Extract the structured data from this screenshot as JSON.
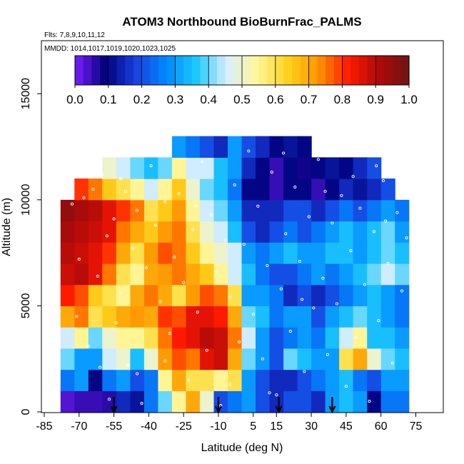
{
  "chart_data": {
    "type": "heatmap",
    "title": "ATOM3 Northbound BioBurnFrac_PALMS",
    "flights_note": "Flts: 7,8,9,10,11,12",
    "dates_note": "MMDD: 1014,1017,1019,1020,1023,1025",
    "xlabel": "Latitude (deg N)",
    "ylabel": "Altitude (m)",
    "xlim": [
      -85,
      85
    ],
    "ylim": [
      0,
      17500
    ],
    "x_ticks": [
      "-85",
      "-70",
      "-55",
      "-40",
      "-25",
      "-10",
      "5",
      "15",
      "30",
      "45",
      "60",
      "75"
    ],
    "y_ticks": [
      "0",
      "5000",
      "10000",
      "15000"
    ],
    "colorbar": {
      "ticks": [
        "0.0",
        "0.1",
        "0.2",
        "0.3",
        "0.4",
        "0.5",
        "0.6",
        "0.7",
        "0.8",
        "0.9",
        "1.0"
      ],
      "range": [
        0,
        1
      ],
      "colors": [
        "#7a1fff",
        "#00007a",
        "#1a3fdf",
        "#0088ff",
        "#1ec8ff",
        "#d9eeff",
        "#fff79a",
        "#ffd21e",
        "#ff9600",
        "#ff1a00",
        "#b00a0a",
        "#6e1414"
      ]
    },
    "latitude_bins": [
      -75,
      -69,
      -63,
      -57,
      -51,
      -45,
      -39,
      -33,
      -27,
      -21,
      -15,
      -9,
      -3,
      3,
      9,
      15,
      21,
      27,
      33,
      39,
      45,
      51,
      57,
      63,
      69,
      75
    ],
    "altitude_bins": [
      500,
      1500,
      2500,
      3500,
      4500,
      5500,
      6500,
      7500,
      8500,
      9500,
      10500,
      11500,
      12500
    ],
    "bioburn_fraction": [
      [
        0.03,
        0.05,
        0.05,
        0.06,
        0.15,
        0.12,
        0.25,
        0.4,
        0.55,
        0.7,
        0.5,
        0.2,
        0.25,
        0.3,
        0.2,
        0.15,
        0.2,
        0.2,
        0.15,
        0.3,
        0.35,
        0.3,
        0.1,
        0.25,
        0.25,
        null
      ],
      [
        0.25,
        0.3,
        0.1,
        0.25,
        0.3,
        0.2,
        0.25,
        0.55,
        0.7,
        0.6,
        0.6,
        0.55,
        0.6,
        0.3,
        0.2,
        0.15,
        0.15,
        0.2,
        0.25,
        0.3,
        0.35,
        0.25,
        0.2,
        0.3,
        0.3,
        null
      ],
      [
        0.4,
        0.3,
        0.3,
        0.45,
        0.5,
        0.35,
        0.5,
        0.72,
        0.78,
        0.75,
        0.85,
        0.88,
        0.7,
        0.4,
        0.3,
        0.2,
        0.4,
        0.35,
        0.3,
        0.3,
        0.6,
        0.7,
        0.5,
        0.4,
        0.35,
        null
      ],
      [
        0.45,
        0.55,
        0.4,
        0.5,
        0.55,
        0.55,
        0.6,
        0.75,
        0.82,
        0.85,
        0.9,
        0.88,
        0.75,
        0.45,
        0.3,
        0.2,
        0.25,
        0.3,
        0.25,
        0.35,
        0.45,
        0.55,
        0.35,
        0.35,
        0.3,
        null
      ],
      [
        0.7,
        0.75,
        0.6,
        0.65,
        0.7,
        0.72,
        0.7,
        0.8,
        0.78,
        0.85,
        0.85,
        0.82,
        0.7,
        0.4,
        0.35,
        0.25,
        0.3,
        0.3,
        0.2,
        0.3,
        0.35,
        0.4,
        0.35,
        0.3,
        0.25,
        null
      ],
      [
        0.82,
        0.78,
        0.65,
        0.6,
        0.55,
        0.7,
        0.75,
        0.7,
        0.6,
        0.72,
        0.78,
        0.75,
        0.6,
        0.3,
        0.3,
        0.25,
        0.15,
        0.2,
        0.15,
        0.2,
        0.25,
        0.3,
        0.35,
        0.3,
        0.25,
        null
      ],
      [
        0.88,
        0.9,
        0.85,
        0.75,
        0.6,
        0.55,
        0.7,
        0.72,
        0.75,
        0.7,
        0.65,
        0.55,
        0.45,
        0.35,
        0.25,
        0.2,
        0.2,
        0.25,
        0.3,
        0.25,
        0.3,
        0.35,
        0.4,
        0.45,
        0.4,
        null
      ],
      [
        0.9,
        0.88,
        0.85,
        0.8,
        0.7,
        0.6,
        0.72,
        0.78,
        0.75,
        0.65,
        0.55,
        0.5,
        0.45,
        0.3,
        0.25,
        0.3,
        0.35,
        0.3,
        0.3,
        0.35,
        0.35,
        0.3,
        0.35,
        0.4,
        0.35,
        null
      ],
      [
        0.92,
        0.9,
        0.88,
        0.85,
        0.75,
        0.7,
        0.65,
        0.72,
        0.75,
        0.6,
        0.5,
        0.45,
        0.35,
        0.2,
        0.15,
        0.2,
        0.25,
        0.2,
        0.25,
        0.3,
        0.35,
        0.3,
        0.35,
        0.4,
        0.3,
        null
      ],
      [
        0.95,
        0.92,
        0.9,
        0.85,
        0.8,
        0.75,
        0.6,
        0.65,
        0.72,
        0.55,
        0.45,
        0.4,
        0.3,
        0.15,
        0.15,
        0.15,
        0.2,
        0.2,
        0.15,
        0.2,
        0.25,
        0.2,
        0.25,
        0.3,
        0.25,
        null
      ],
      [
        null,
        0.8,
        0.75,
        0.65,
        0.6,
        0.55,
        0.45,
        0.55,
        0.65,
        0.5,
        0.4,
        0.35,
        0.25,
        0.1,
        0.1,
        0.05,
        0.1,
        0.1,
        0.05,
        0.1,
        0.15,
        0.12,
        0.15,
        0.2,
        null,
        null
      ],
      [
        null,
        null,
        null,
        0.5,
        0.45,
        0.4,
        0.35,
        0.4,
        0.55,
        0.45,
        0.45,
        0.35,
        0.3,
        0.15,
        0.1,
        0.05,
        0.1,
        0.08,
        0.1,
        0.12,
        0.1,
        0.15,
        0.2,
        null,
        null,
        null
      ],
      [
        null,
        null,
        null,
        null,
        null,
        null,
        null,
        null,
        0.3,
        0.25,
        0.2,
        0.15,
        0.3,
        0.2,
        0.15,
        0.1,
        0.12,
        0.1,
        null,
        null,
        null,
        null,
        null,
        null,
        null,
        null
      ]
    ],
    "sample_points": [
      [
        -73,
        9800
      ],
      [
        -70,
        7200
      ],
      [
        -68,
        10100
      ],
      [
        -66,
        3100
      ],
      [
        -64,
        10500
      ],
      [
        -62,
        6400
      ],
      [
        -60,
        11200
      ],
      [
        -58,
        8300
      ],
      [
        -57,
        600
      ],
      [
        -55,
        9100
      ],
      [
        -54,
        4200
      ],
      [
        -52,
        5600
      ],
      [
        -50,
        10400
      ],
      [
        -49,
        2200
      ],
      [
        -47,
        7700
      ],
      [
        -45,
        9500
      ],
      [
        -43,
        400
      ],
      [
        -41,
        6800
      ],
      [
        -39,
        11600
      ],
      [
        -37,
        8800
      ],
      [
        -35,
        5200
      ],
      [
        -33,
        9900
      ],
      [
        -31,
        3700
      ],
      [
        -29,
        7300
      ],
      [
        -27,
        10300
      ],
      [
        -25,
        6100
      ],
      [
        -23,
        1500
      ],
      [
        -21,
        8600
      ],
      [
        -19,
        4700
      ],
      [
        -17,
        11800
      ],
      [
        -15,
        2900
      ],
      [
        -13,
        9300
      ],
      [
        -11,
        6600
      ],
      [
        -9,
        300
      ],
      [
        -7,
        8100
      ],
      [
        -5,
        5400
      ],
      [
        -3,
        10700
      ],
      [
        -1,
        3300
      ],
      [
        1,
        7900
      ],
      [
        3,
        12300
      ],
      [
        5,
        4600
      ],
      [
        7,
        9700
      ],
      [
        9,
        2500
      ],
      [
        11,
        6900
      ],
      [
        13,
        11300
      ],
      [
        15,
        800
      ],
      [
        17,
        5800
      ],
      [
        19,
        8400
      ],
      [
        21,
        3800
      ],
      [
        23,
        10600
      ],
      [
        25,
        7100
      ],
      [
        27,
        1900
      ],
      [
        29,
        9200
      ],
      [
        31,
        4900
      ],
      [
        33,
        11900
      ],
      [
        35,
        6300
      ],
      [
        37,
        2700
      ],
      [
        39,
        8900
      ],
      [
        41,
        5100
      ],
      [
        43,
        10200
      ],
      [
        45,
        1200
      ],
      [
        47,
        7600
      ],
      [
        49,
        3500
      ],
      [
        51,
        9600
      ],
      [
        53,
        6000
      ],
      [
        55,
        500
      ],
      [
        57,
        8500
      ],
      [
        59,
        4300
      ],
      [
        61,
        10900
      ],
      [
        63,
        7000
      ],
      [
        65,
        2300
      ],
      [
        67,
        9400
      ],
      [
        69,
        5700
      ],
      [
        71,
        8200
      ],
      [
        73,
        3000
      ],
      [
        75,
        6500
      ],
      [
        -71,
        4500
      ],
      [
        -61,
        2100
      ],
      [
        -45,
        1800
      ],
      [
        -33,
        2400
      ],
      [
        -5,
        1300
      ],
      [
        12,
        900
      ],
      [
        26,
        5300
      ],
      [
        48,
        11100
      ],
      [
        58,
        11600
      ],
      [
        62,
        9000
      ],
      [
        36,
        10400
      ],
      [
        18,
        12200
      ],
      [
        -20,
        9700
      ],
      [
        -52,
        11000
      ]
    ],
    "markers_latitude": [
      -55,
      -10,
      16,
      39
    ],
    "markers_label": "downward arrows at altitude 0",
    "grid": false,
    "legend_placement": "top colorbar"
  }
}
